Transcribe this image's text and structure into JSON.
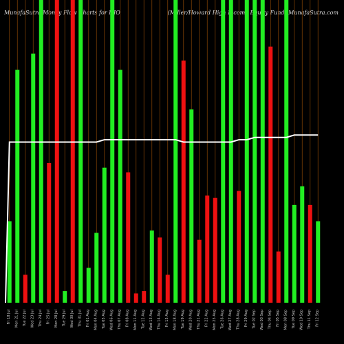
{
  "header": {
    "left": "MunafaSutra  Money Flow  Charts for HIO",
    "right": "(Miller/Howard High Income Equity Fund) MunafaSutra.com"
  },
  "chart_data": {
    "type": "bar",
    "colors": {
      "up": "#22ee22",
      "down": "#ee1111",
      "line": "#ffffff",
      "grid": "#7a3e05",
      "background": "#000000"
    },
    "bars": [
      {
        "date": "Fri 18 Jul",
        "value": 35,
        "color": "up"
      },
      {
        "date": "Mon 21 Jul",
        "value": 100,
        "color": "up"
      },
      {
        "date": "Tue 22 Jul",
        "value": 12,
        "color": "down"
      },
      {
        "date": "Wed 23 Jul",
        "value": 107,
        "color": "up"
      },
      {
        "date": "Thu 24 Jul",
        "value": 130,
        "color": "up"
      },
      {
        "date": "Fri 25 Jul",
        "value": 60,
        "color": "down"
      },
      {
        "date": "Mon 28 Jul",
        "value": 130,
        "color": "down"
      },
      {
        "date": "Tue 29 Jul",
        "value": 5,
        "color": "up"
      },
      {
        "date": "Wed 30 Jul",
        "value": 130,
        "color": "down"
      },
      {
        "date": "Thu 31 Jul",
        "value": 130,
        "color": "up"
      },
      {
        "date": "Fri 01 Aug",
        "value": 15,
        "color": "up"
      },
      {
        "date": "Mon 04 Aug",
        "value": 30,
        "color": "up"
      },
      {
        "date": "Tue 05 Aug",
        "value": 58,
        "color": "up"
      },
      {
        "date": "Wed 06 Aug",
        "value": 130,
        "color": "up"
      },
      {
        "date": "Thu 07 Aug",
        "value": 100,
        "color": "up"
      },
      {
        "date": "Fri 08 Aug",
        "value": 56,
        "color": "down"
      },
      {
        "date": "Mon 11 Aug",
        "value": 4,
        "color": "down"
      },
      {
        "date": "Tue 12 Aug",
        "value": 5,
        "color": "down"
      },
      {
        "date": "Wed 13 Aug",
        "value": 31,
        "color": "up"
      },
      {
        "date": "Thu 14 Aug",
        "value": 28,
        "color": "down"
      },
      {
        "date": "Fri 15 Aug",
        "value": 12,
        "color": "down"
      },
      {
        "date": "Mon 18 Aug",
        "value": 130,
        "color": "up"
      },
      {
        "date": "Tue 19 Aug",
        "value": 104,
        "color": "down"
      },
      {
        "date": "Wed 20 Aug",
        "value": 83,
        "color": "up"
      },
      {
        "date": "Thu 21 Aug",
        "value": 27,
        "color": "down"
      },
      {
        "date": "Fri 22 Aug",
        "value": 46,
        "color": "down"
      },
      {
        "date": "Mon 25 Aug",
        "value": 45,
        "color": "down"
      },
      {
        "date": "Tue 26 Aug",
        "value": 130,
        "color": "up"
      },
      {
        "date": "Wed 27 Aug",
        "value": 130,
        "color": "up"
      },
      {
        "date": "Thu 28 Aug",
        "value": 48,
        "color": "down"
      },
      {
        "date": "Fri 29 Aug",
        "value": 130,
        "color": "up"
      },
      {
        "date": "Tue 02 Sep",
        "value": 130,
        "color": "up"
      },
      {
        "date": "Wed 03 Sep",
        "value": 130,
        "color": "up"
      },
      {
        "date": "Thu 04 Sep",
        "value": 110,
        "color": "down"
      },
      {
        "date": "Fri 05 Sep",
        "value": 22,
        "color": "down"
      },
      {
        "date": "Mon 08 Sep",
        "value": 130,
        "color": "up"
      },
      {
        "date": "Tue 09 Sep",
        "value": 42,
        "color": "up"
      },
      {
        "date": "Wed 10 Sep",
        "value": 50,
        "color": "up"
      },
      {
        "date": "Thu 11 Sep",
        "value": 42,
        "color": "down"
      },
      {
        "date": "Fri 12 Sep",
        "value": 35,
        "color": "up"
      }
    ],
    "line": [
      69,
      69,
      69,
      69,
      69,
      69,
      69,
      69,
      69,
      69,
      69,
      69,
      70,
      70,
      70,
      70,
      70,
      70,
      70,
      70,
      70,
      70,
      69,
      69,
      69,
      69,
      69,
      69,
      69,
      70,
      70,
      71,
      71,
      71,
      71,
      71,
      72,
      72,
      72,
      72
    ],
    "ylim": [
      0,
      130
    ],
    "grid": "vertical"
  }
}
